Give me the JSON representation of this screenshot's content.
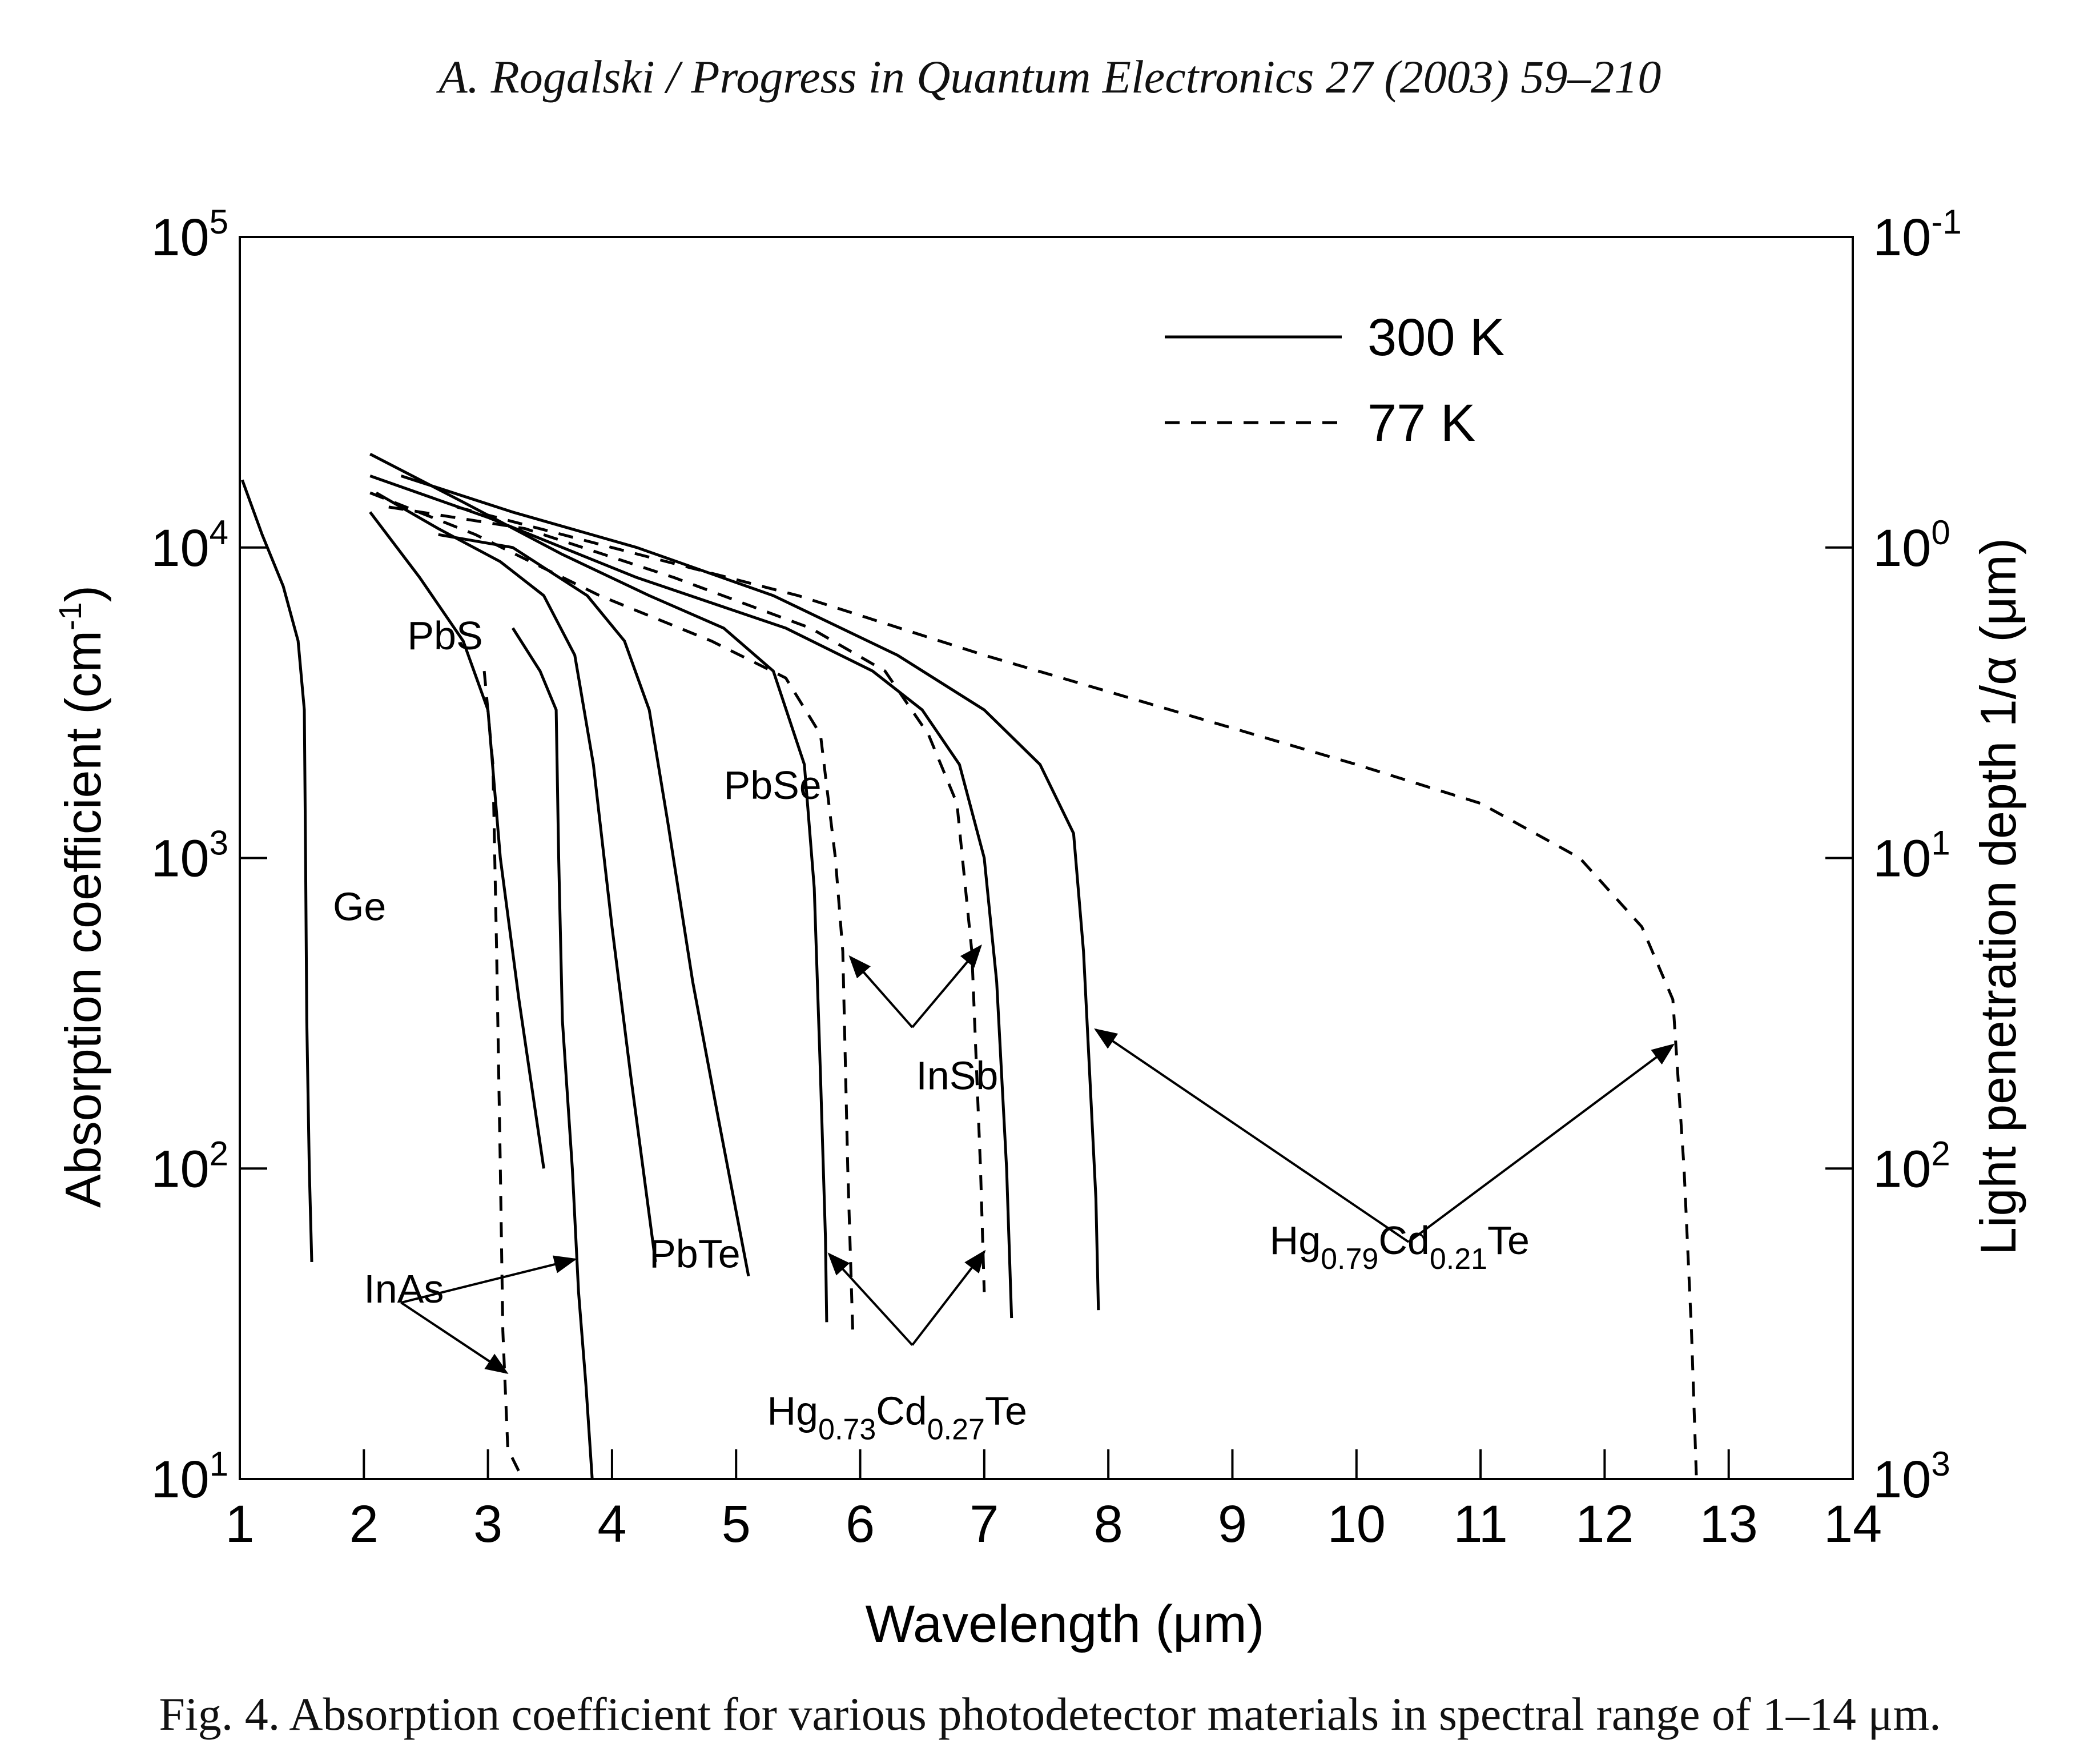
{
  "header": "A. Rogalski / Progress in Quantum Electronics 27 (2003) 59–210",
  "caption": "Fig. 4. Absorption coefficient for various photodetector materials in spectral range of 1–14 μm.",
  "chart_data": {
    "type": "line",
    "title": "",
    "xlabel": "Wavelength (μm)",
    "ylabel": "Absorption coefficient (cm-1)",
    "ylabel_right": "Light penetration depth 1/α (μm)",
    "xlim": [
      1,
      14
    ],
    "ylim": [
      10,
      100000
    ],
    "yscale": "log",
    "grid": false,
    "legend_position": "top-right",
    "x_ticks": [
      1,
      2,
      3,
      4,
      5,
      6,
      7,
      8,
      9,
      10,
      11,
      12,
      13,
      14
    ],
    "x_tick_labels": [
      "1",
      "2",
      "3",
      "4",
      "5",
      "6",
      "7",
      "8",
      "9",
      "10",
      "11",
      "12",
      "13",
      "14"
    ],
    "y_ticks": [
      10,
      100,
      1000,
      10000,
      100000
    ],
    "y_tick_labels": [
      {
        "base": "10",
        "exp": "1"
      },
      {
        "base": "10",
        "exp": "2"
      },
      {
        "base": "10",
        "exp": "3"
      },
      {
        "base": "10",
        "exp": "4"
      },
      {
        "base": "10",
        "exp": "5"
      }
    ],
    "y_ticks_right": [
      {
        "value": 100000,
        "base": "10",
        "exp": "-1"
      },
      {
        "value": 10000,
        "base": "10",
        "exp": "0"
      },
      {
        "value": 1000,
        "base": "10",
        "exp": "1"
      },
      {
        "value": 100,
        "base": "10",
        "exp": "2"
      },
      {
        "value": 10,
        "base": "10",
        "exp": "3"
      }
    ],
    "legend": [
      {
        "label": "300 K",
        "style": "solid"
      },
      {
        "label": "77 K",
        "style": "dashed"
      }
    ],
    "series": [
      {
        "label_ref": "Ge",
        "temperature": "300 K",
        "style": "solid",
        "points": [
          [
            1.02,
            16500
          ],
          [
            1.18,
            11000
          ],
          [
            1.35,
            7500
          ],
          [
            1.47,
            5000
          ],
          [
            1.52,
            3000
          ],
          [
            1.53,
            1000
          ],
          [
            1.54,
            300
          ],
          [
            1.56,
            100
          ],
          [
            1.58,
            50
          ]
        ]
      },
      {
        "label_ref": "PbS",
        "temperature": "77 K",
        "style": "dashed",
        "points": [
          [
            2.97,
            4000
          ],
          [
            3.04,
            2000
          ],
          [
            3.07,
            500
          ],
          [
            3.1,
            100
          ],
          [
            3.12,
            30
          ],
          [
            3.16,
            12.5
          ],
          [
            3.28,
            10
          ]
        ]
      },
      {
        "label_ref": "PbS",
        "temperature": "300 K",
        "style": "solid",
        "points": [
          [
            2.05,
            13000
          ],
          [
            2.45,
            8000
          ],
          [
            2.8,
            5000
          ],
          [
            3.0,
            3000
          ],
          [
            3.1,
            1000
          ],
          [
            3.25,
            350
          ],
          [
            3.45,
            100
          ]
        ]
      },
      {
        "label_ref": "InAs",
        "temperature": "300 K",
        "style": "solid",
        "points": [
          [
            3.2,
            5500
          ],
          [
            3.42,
            4000
          ],
          [
            3.55,
            3000
          ],
          [
            3.57,
            1000
          ],
          [
            3.6,
            300
          ],
          [
            3.68,
            100
          ],
          [
            3.73,
            40
          ],
          [
            3.79,
            20
          ],
          [
            3.84,
            10
          ]
        ]
      },
      {
        "label_ref": "PbTe",
        "temperature": "300 K",
        "style": "solid",
        "points": [
          [
            2.1,
            15000
          ],
          [
            2.6,
            11500
          ],
          [
            3.1,
            9000
          ],
          [
            3.45,
            7000
          ],
          [
            3.7,
            4500
          ],
          [
            3.85,
            2000
          ],
          [
            4.0,
            600
          ],
          [
            4.15,
            200
          ],
          [
            4.25,
            100
          ],
          [
            4.35,
            50
          ]
        ]
      },
      {
        "label_ref": "PbTe",
        "temperature": "300 K",
        "style": "solid",
        "points": [
          [
            2.6,
            11000
          ],
          [
            3.2,
            10000
          ],
          [
            3.8,
            7000
          ],
          [
            4.1,
            5000
          ],
          [
            4.3,
            3000
          ],
          [
            4.45,
            1300
          ],
          [
            4.65,
            400
          ],
          [
            4.85,
            150
          ],
          [
            5.1,
            45
          ]
        ]
      },
      {
        "label_ref": "PbSe",
        "temperature": "300 K",
        "style": "solid",
        "points": [
          [
            2.05,
            20000
          ],
          [
            2.8,
            14000
          ],
          [
            3.6,
            9500
          ],
          [
            4.3,
            7000
          ],
          [
            4.9,
            5500
          ],
          [
            5.3,
            4000
          ],
          [
            5.55,
            2000
          ],
          [
            5.63,
            800
          ],
          [
            5.68,
            200
          ],
          [
            5.72,
            60
          ],
          [
            5.73,
            32
          ]
        ]
      },
      {
        "label_ref": "Hg0.73Cd0.27Te",
        "temperature": "77 K",
        "style": "dashed",
        "points": [
          [
            2.05,
            15000
          ],
          [
            2.9,
            11000
          ],
          [
            3.9,
            7000
          ],
          [
            4.8,
            5000
          ],
          [
            5.4,
            3800
          ],
          [
            5.68,
            2500
          ],
          [
            5.8,
            1000
          ],
          [
            5.86,
            500
          ],
          [
            5.9,
            100
          ],
          [
            5.94,
            30
          ]
        ]
      },
      {
        "label_ref": "InSb",
        "temperature": "300 K",
        "style": "solid",
        "points": [
          [
            2.05,
            17000
          ],
          [
            3.0,
            12500
          ],
          [
            4.2,
            8000
          ],
          [
            5.4,
            5500
          ],
          [
            6.1,
            4000
          ],
          [
            6.5,
            3000
          ],
          [
            6.8,
            2000
          ],
          [
            7.0,
            1000
          ],
          [
            7.1,
            400
          ],
          [
            7.18,
            100
          ],
          [
            7.22,
            33
          ]
        ]
      },
      {
        "label_ref": "InSb",
        "temperature": "77 K",
        "style": "dashed",
        "points": [
          [
            2.2,
            13500
          ],
          [
            3.3,
            11500
          ],
          [
            4.5,
            8000
          ],
          [
            5.6,
            5500
          ],
          [
            6.2,
            4000
          ],
          [
            6.55,
            2500
          ],
          [
            6.78,
            1500
          ],
          [
            6.9,
            500
          ],
          [
            6.97,
            100
          ],
          [
            7.0,
            40
          ]
        ]
      },
      {
        "label_ref": "Hg0.79Cd0.21Te",
        "temperature": "300 K",
        "style": "solid",
        "points": [
          [
            2.3,
            17000
          ],
          [
            3.2,
            13000
          ],
          [
            4.2,
            10000
          ],
          [
            5.3,
            7000
          ],
          [
            6.3,
            4500
          ],
          [
            7.0,
            3000
          ],
          [
            7.45,
            2000
          ],
          [
            7.72,
            1200
          ],
          [
            7.8,
            500
          ],
          [
            7.85,
            200
          ],
          [
            7.9,
            80
          ],
          [
            7.92,
            35
          ]
        ]
      },
      {
        "label_ref": "Hg0.79Cd0.21Te",
        "temperature": "77 K",
        "style": "dashed",
        "points": [
          [
            2.75,
            13500
          ],
          [
            4.0,
            10000
          ],
          [
            5.5,
            7000
          ],
          [
            7.0,
            4500
          ],
          [
            8.5,
            3000
          ],
          [
            10.0,
            2000
          ],
          [
            11.0,
            1500
          ],
          [
            11.8,
            1000
          ],
          [
            12.3,
            600
          ],
          [
            12.55,
            350
          ],
          [
            12.64,
            100
          ],
          [
            12.7,
            30
          ],
          [
            12.74,
            10
          ]
        ]
      }
    ],
    "annotations": [
      {
        "text": "Ge",
        "x": 1.75,
        "y": 630
      },
      {
        "text": "PbS",
        "x": 2.35,
        "y": 4700
      },
      {
        "text": "PbSe",
        "x": 4.9,
        "y": 1550
      },
      {
        "text": "InSb",
        "x": 6.45,
        "y": 180
      },
      {
        "text": "PbTe",
        "x": 4.3,
        "y": 48
      },
      {
        "text": "InAs",
        "x": 2.0,
        "y": 37
      },
      {
        "text": "Hg",
        "sub1": "0.73",
        "mid": "Cd",
        "sub2": "0.27",
        "tail": "Te",
        "x": 5.25,
        "y": 15,
        "arrow_targets": [
          [
            5.75,
            53
          ],
          [
            7.0,
            54
          ]
        ],
        "arrow_origin": [
          6.42,
          27
        ]
      },
      {
        "text": "Hg",
        "sub1": "0.79",
        "mid": "Cd",
        "sub2": "0.21",
        "tail": "Te",
        "x": 9.3,
        "y": 53,
        "arrow_targets": [
          [
            7.9,
            280
          ],
          [
            12.55,
            250
          ]
        ],
        "arrow_origin": [
          10.42,
          58
        ]
      },
      {
        "text": "InSb",
        "arrow_origin": [
          6.42,
          285
        ],
        "arrow_targets": [
          [
            5.92,
            480
          ],
          [
            6.97,
            520
          ]
        ]
      },
      {
        "text": "InAs",
        "arrow_origin": [
          2.3,
          37
        ],
        "arrow_targets": [
          [
            3.7,
            51
          ],
          [
            3.15,
            22
          ]
        ]
      }
    ]
  }
}
